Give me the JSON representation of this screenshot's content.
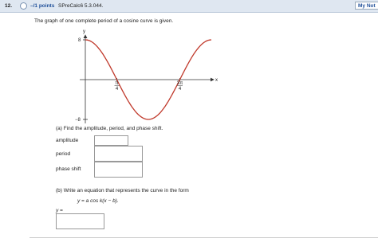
{
  "header": {
    "number": "12.",
    "points": "–/1 points",
    "source": "SPreCalc6 5.3.044.",
    "button": "My Not"
  },
  "question": "The graph of one complete period of a cosine curve is given.",
  "graph": {
    "y_label": "y",
    "x_label": "x",
    "y_max": "8",
    "y_min": "−8",
    "x_ticks": [
      {
        "numerator": "π",
        "denominator": "4"
      },
      {
        "numerator": "3π",
        "denominator": "4"
      }
    ]
  },
  "part_a": {
    "prompt": "(a) Find the amplitude, period, and phase shift.",
    "fields": [
      "amplitude",
      "period",
      "phase shift"
    ]
  },
  "part_b": {
    "prompt": "(b) Write an equation that represents the curve in the form",
    "form": "y = a cos k(x − b).",
    "answer_label": "y ="
  }
}
